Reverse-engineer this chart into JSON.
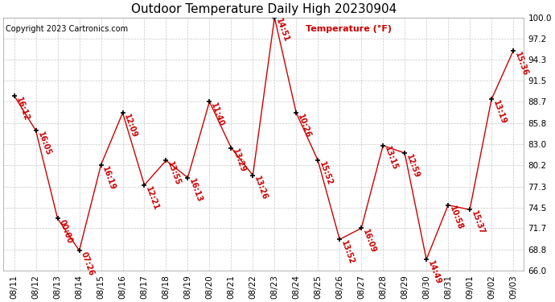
{
  "title": "Outdoor Temperature Daily High 20230904",
  "copyright": "Copyright 2023 Cartronics.com",
  "ylabel": "Temperature (°F)",
  "background_color": "#ffffff",
  "grid_color": "#c8c8c8",
  "line_color": "#cc0000",
  "point_color": "#000000",
  "label_color": "#cc0000",
  "ylim": [
    66.0,
    100.0
  ],
  "yticks": [
    66.0,
    68.8,
    71.7,
    74.5,
    77.3,
    80.2,
    83.0,
    85.8,
    88.7,
    91.5,
    94.3,
    97.2,
    100.0
  ],
  "dates": [
    "08/11",
    "08/12",
    "08/13",
    "08/14",
    "08/15",
    "08/16",
    "08/17",
    "08/18",
    "08/19",
    "08/20",
    "08/21",
    "08/22",
    "08/23",
    "08/24",
    "08/25",
    "08/26",
    "08/27",
    "08/28",
    "08/29",
    "08/30",
    "08/31",
    "09/01",
    "09/02",
    "09/03"
  ],
  "values": [
    89.5,
    84.8,
    73.0,
    68.7,
    80.2,
    87.2,
    77.5,
    80.8,
    78.5,
    88.7,
    82.5,
    78.8,
    100.0,
    87.2,
    80.8,
    70.2,
    71.7,
    82.8,
    81.8,
    67.5,
    74.8,
    74.2,
    89.0,
    95.5
  ],
  "time_labels": [
    "16:12",
    "16:05",
    "00:00",
    "07:26",
    "16:19",
    "12:09",
    "12:21",
    "13:55",
    "16:13",
    "11:40",
    "13:29",
    "13:26",
    "14:51",
    "10:26",
    "15:52",
    "13:52",
    "16:09",
    "13:15",
    "12:59",
    "14:49",
    "10:58",
    "15:37",
    "13:19",
    "15:36"
  ],
  "title_fontsize": 11,
  "label_fontsize": 7,
  "tick_fontsize": 7.5,
  "copyright_fontsize": 7,
  "ylabel_fontsize": 8
}
